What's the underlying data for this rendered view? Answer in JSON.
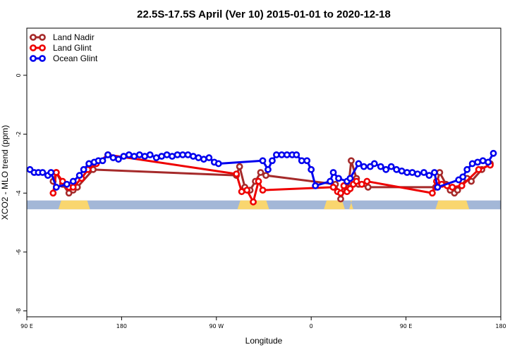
{
  "chart_data": {
    "type": "line",
    "title": "22.5S-17.5S April (Ver 10)   2015-01-01 to 2020-12-18",
    "xlabel": "Longitude",
    "ylabel": "XCO2 - MLO trend (ppm)",
    "xlim": [
      90,
      540
    ],
    "ylim": [
      -8.2,
      1.6
    ],
    "x_ticks": [
      {
        "value": 90,
        "label": "90 E"
      },
      {
        "value": 180,
        "label": "180"
      },
      {
        "value": 270,
        "label": "90 W"
      },
      {
        "value": 360,
        "label": "0"
      },
      {
        "value": 450,
        "label": "90 E"
      },
      {
        "value": 540,
        "label": "180"
      }
    ],
    "y_ticks": [
      {
        "value": 0,
        "label": "0"
      },
      {
        "value": -2,
        "label": "-2"
      },
      {
        "value": -4,
        "label": "-4"
      },
      {
        "value": -6,
        "label": "-6"
      },
      {
        "value": -8,
        "label": "-8"
      }
    ],
    "grid": false,
    "legend_position": "top-left",
    "surface_band": {
      "y_range": [
        -4.55,
        -4.25
      ],
      "ocean_color": "#a3b7d7",
      "land_color": "#f9d66f",
      "land_segments": [
        [
          120,
          150
        ],
        [
          290,
          320
        ],
        [
          372,
          392
        ],
        [
          396,
          400
        ],
        [
          478,
          510
        ]
      ]
    },
    "series": [
      {
        "name": "Land Nadir",
        "color": "#a52a2a",
        "points": [
          [
            115,
            -3.6
          ],
          [
            118,
            -3.3
          ],
          [
            124,
            -3.7
          ],
          [
            130,
            -4.0
          ],
          [
            134,
            -3.9
          ],
          [
            138,
            -3.8
          ],
          [
            153,
            -3.2
          ],
          [
            289,
            -3.4
          ],
          [
            292,
            -3.1
          ],
          [
            297,
            -3.8
          ],
          [
            302,
            -3.9
          ],
          [
            307,
            -3.6
          ],
          [
            312,
            -3.3
          ],
          [
            317,
            -3.4
          ],
          [
            383,
            -3.7
          ],
          [
            388,
            -4.2
          ],
          [
            393,
            -3.8
          ],
          [
            395,
            -3.9
          ],
          [
            398,
            -2.9
          ],
          [
            403,
            -3.5
          ],
          [
            405,
            -3.7
          ],
          [
            414,
            -3.8
          ],
          [
            478,
            -3.8
          ],
          [
            482,
            -3.3
          ],
          [
            488,
            -3.7
          ],
          [
            492,
            -3.9
          ],
          [
            496,
            -4.0
          ],
          [
            499,
            -3.9
          ],
          [
            508,
            -3.5
          ],
          [
            512,
            -3.6
          ],
          [
            522,
            -3.2
          ],
          [
            530,
            -3.0
          ]
        ]
      },
      {
        "name": "Land Glint",
        "color": "#ee0000",
        "points": [
          [
            115,
            -4.0
          ],
          [
            118,
            -3.3
          ],
          [
            124,
            -3.6
          ],
          [
            130,
            -3.8
          ],
          [
            134,
            -3.8
          ],
          [
            142,
            -3.5
          ],
          [
            148,
            -3.2
          ],
          [
            156,
            -3.0
          ],
          [
            167,
            -2.7
          ],
          [
            289,
            -3.35
          ],
          [
            294,
            -3.95
          ],
          [
            299,
            -3.9
          ],
          [
            305,
            -4.3
          ],
          [
            310,
            -3.6
          ],
          [
            314,
            -3.9
          ],
          [
            381,
            -3.8
          ],
          [
            385,
            -3.95
          ],
          [
            388,
            -4.0
          ],
          [
            391,
            -3.75
          ],
          [
            394,
            -3.95
          ],
          [
            397,
            -3.85
          ],
          [
            400,
            -3.7
          ],
          [
            403,
            -3.6
          ],
          [
            408,
            -3.7
          ],
          [
            413,
            -3.6
          ],
          [
            475,
            -4.0
          ],
          [
            479,
            -3.6
          ],
          [
            484,
            -3.7
          ],
          [
            489,
            -3.75
          ],
          [
            494,
            -3.8
          ],
          [
            503,
            -3.75
          ],
          [
            519,
            -3.2
          ],
          [
            530,
            -3.05
          ]
        ]
      },
      {
        "name": "Ocean Glint",
        "color": "#0000ee",
        "points": [
          [
            93,
            -3.2
          ],
          [
            97,
            -3.3
          ],
          [
            101,
            -3.3
          ],
          [
            105,
            -3.3
          ],
          [
            110,
            -3.4
          ],
          [
            113,
            -3.3
          ],
          [
            118,
            -3.8
          ],
          [
            128,
            -3.7
          ],
          [
            134,
            -3.6
          ],
          [
            140,
            -3.4
          ],
          [
            144,
            -3.2
          ],
          [
            149,
            -3.0
          ],
          [
            154,
            -2.95
          ],
          [
            158,
            -2.9
          ],
          [
            162,
            -2.9
          ],
          [
            167,
            -2.7
          ],
          [
            172,
            -2.8
          ],
          [
            177,
            -2.85
          ],
          [
            182,
            -2.75
          ],
          [
            187,
            -2.7
          ],
          [
            192,
            -2.75
          ],
          [
            197,
            -2.7
          ],
          [
            202,
            -2.75
          ],
          [
            207,
            -2.7
          ],
          [
            213,
            -2.8
          ],
          [
            218,
            -2.75
          ],
          [
            223,
            -2.7
          ],
          [
            228,
            -2.75
          ],
          [
            233,
            -2.7
          ],
          [
            238,
            -2.7
          ],
          [
            243,
            -2.7
          ],
          [
            248,
            -2.75
          ],
          [
            253,
            -2.8
          ],
          [
            258,
            -2.85
          ],
          [
            263,
            -2.8
          ],
          [
            268,
            -2.95
          ],
          [
            272,
            -3.0
          ],
          [
            314,
            -2.9
          ],
          [
            319,
            -3.2
          ],
          [
            323,
            -2.9
          ],
          [
            327,
            -2.7
          ],
          [
            332,
            -2.7
          ],
          [
            337,
            -2.7
          ],
          [
            342,
            -2.7
          ],
          [
            346,
            -2.7
          ],
          [
            351,
            -2.9
          ],
          [
            356,
            -2.9
          ],
          [
            360,
            -3.2
          ],
          [
            364,
            -3.75
          ],
          [
            378,
            -3.6
          ],
          [
            381,
            -3.3
          ],
          [
            386,
            -3.5
          ],
          [
            394,
            -3.6
          ],
          [
            397,
            -3.5
          ],
          [
            405,
            -3.0
          ],
          [
            410,
            -3.1
          ],
          [
            416,
            -3.1
          ],
          [
            420,
            -3.0
          ],
          [
            426,
            -3.1
          ],
          [
            431,
            -3.2
          ],
          [
            436,
            -3.1
          ],
          [
            441,
            -3.2
          ],
          [
            446,
            -3.25
          ],
          [
            451,
            -3.3
          ],
          [
            456,
            -3.3
          ],
          [
            461,
            -3.35
          ],
          [
            467,
            -3.3
          ],
          [
            472,
            -3.4
          ],
          [
            477,
            -3.3
          ],
          [
            480,
            -3.8
          ],
          [
            500,
            -3.55
          ],
          [
            504,
            -3.45
          ],
          [
            508,
            -3.2
          ],
          [
            513,
            -3.0
          ],
          [
            518,
            -2.95
          ],
          [
            523,
            -2.9
          ],
          [
            528,
            -2.95
          ],
          [
            533,
            -2.65
          ]
        ]
      }
    ]
  }
}
